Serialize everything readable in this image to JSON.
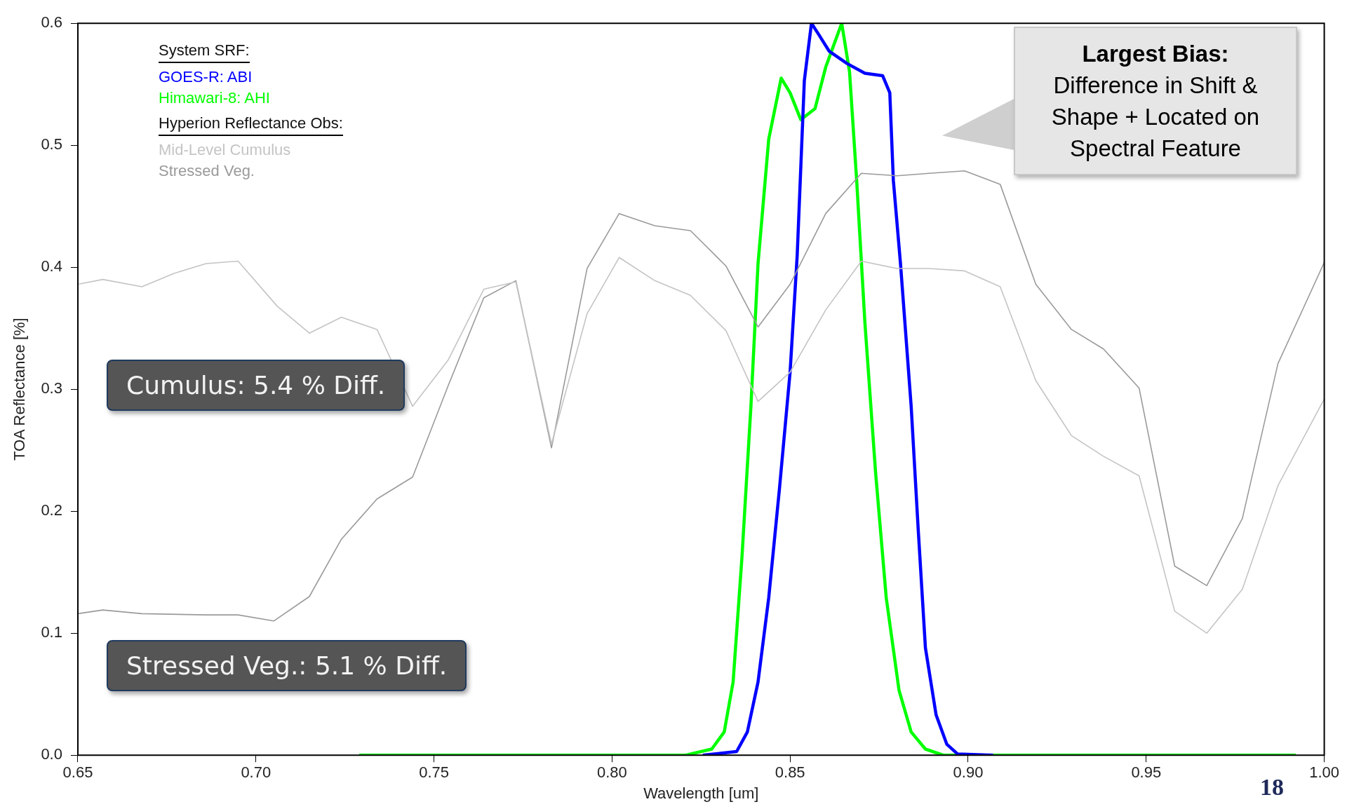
{
  "chart_data": {
    "type": "line",
    "xlabel": "Wavelength [um]",
    "ylabel": "TOA Reflectance [%]",
    "xlim": [
      0.65,
      1.0
    ],
    "xticks": [
      {
        "value": 0.65,
        "label": "0.65"
      },
      {
        "value": 0.7,
        "label": "0.70"
      },
      {
        "value": 0.75,
        "label": "0.75"
      },
      {
        "value": 0.8,
        "label": "0.80"
      },
      {
        "value": 0.85,
        "label": "0.85"
      },
      {
        "value": 0.9,
        "label": "0.90"
      },
      {
        "value": 0.95,
        "label": "0.95"
      },
      {
        "value": 1.0,
        "label": "1.00"
      }
    ],
    "ylim": [
      0,
      0.6
    ],
    "yticks": [
      {
        "value": 0,
        "label": "0.0"
      },
      {
        "value": 0.1,
        "label": "0.1"
      },
      {
        "value": 0.2,
        "label": "0.2"
      },
      {
        "value": 0.3,
        "label": "0.3"
      },
      {
        "value": 0.4,
        "label": "0.4"
      },
      {
        "value": 0.5,
        "label": "0.5"
      },
      {
        "value": 0.6,
        "label": "0.6"
      }
    ],
    "grid": false,
    "legend": "top left",
    "marker": "none",
    "line_style": "solid",
    "series": [
      {
        "name": "Mid-Level Cumulus",
        "color": "#c4c4c4",
        "x": [
          0.65,
          0.657,
          0.668,
          0.677,
          0.686,
          0.695,
          0.706,
          0.715,
          0.724,
          0.734,
          0.744,
          0.754,
          0.764,
          0.773,
          0.783,
          0.793,
          0.802,
          0.812,
          0.822,
          0.832,
          0.841,
          0.85,
          0.86,
          0.87,
          0.88,
          0.889,
          0.899,
          0.909,
          0.919,
          0.929,
          0.938,
          0.948,
          0.958,
          0.967,
          0.977,
          0.987,
          1.0
        ],
        "values": [
          0.386,
          0.39,
          0.384,
          0.395,
          0.403,
          0.405,
          0.368,
          0.346,
          0.359,
          0.349,
          0.286,
          0.324,
          0.382,
          0.388,
          0.255,
          0.362,
          0.408,
          0.389,
          0.377,
          0.348,
          0.29,
          0.314,
          0.365,
          0.405,
          0.399,
          0.399,
          0.397,
          0.384,
          0.307,
          0.262,
          0.245,
          0.229,
          0.118,
          0.1,
          0.136,
          0.221,
          0.292
        ]
      },
      {
        "name": "Stressed Veg.",
        "color": "#9a9a9a",
        "x": [
          0.65,
          0.657,
          0.668,
          0.686,
          0.695,
          0.705,
          0.715,
          0.724,
          0.734,
          0.744,
          0.754,
          0.764,
          0.773,
          0.783,
          0.793,
          0.802,
          0.812,
          0.822,
          0.832,
          0.841,
          0.85,
          0.86,
          0.87,
          0.88,
          0.889,
          0.899,
          0.909,
          0.919,
          0.929,
          0.938,
          0.948,
          0.958,
          0.967,
          0.977,
          0.987,
          1.0
        ],
        "values": [
          0.116,
          0.119,
          0.116,
          0.115,
          0.115,
          0.11,
          0.13,
          0.177,
          0.21,
          0.228,
          0.303,
          0.375,
          0.389,
          0.252,
          0.399,
          0.444,
          0.434,
          0.43,
          0.401,
          0.351,
          0.386,
          0.444,
          0.477,
          0.475,
          0.477,
          0.479,
          0.468,
          0.386,
          0.349,
          0.333,
          0.301,
          0.155,
          0.139,
          0.194,
          0.321,
          0.404
        ]
      },
      {
        "name": "GOES-R: ABI",
        "color": "#0000ff",
        "x": [
          0.8255,
          0.835,
          0.838,
          0.841,
          0.844,
          0.847,
          0.85,
          0.852,
          0.854,
          0.856,
          0.858,
          0.861,
          0.866,
          0.871,
          0.876,
          0.878,
          0.879,
          0.881,
          0.884,
          0.886,
          0.888,
          0.891,
          0.894,
          0.897,
          0.907
        ],
        "values": [
          0,
          0.003,
          0.019,
          0.06,
          0.129,
          0.218,
          0.314,
          0.41,
          0.553,
          0.6,
          0.591,
          0.577,
          0.567,
          0.559,
          0.557,
          0.543,
          0.471,
          0.403,
          0.286,
          0.184,
          0.088,
          0.033,
          0.009,
          0.001,
          0
        ]
      },
      {
        "name": "Himawari-8: AHI",
        "color": "#00ff00",
        "x": [
          0.729,
          0.8207,
          0.828,
          0.8315,
          0.834,
          0.8365,
          0.839,
          0.841,
          0.844,
          0.8475,
          0.85,
          0.853,
          0.857,
          0.86,
          0.8645,
          0.8667,
          0.8687,
          0.871,
          0.874,
          0.877,
          0.8806,
          0.884,
          0.888,
          0.893,
          0.992
        ],
        "values": [
          0,
          0,
          0.005,
          0.019,
          0.06,
          0.163,
          0.286,
          0.403,
          0.505,
          0.555,
          0.543,
          0.521,
          0.53,
          0.564,
          0.6,
          0.56,
          0.471,
          0.355,
          0.232,
          0.129,
          0.053,
          0.019,
          0.005,
          0,
          0
        ]
      }
    ],
    "annotations": [
      "System SRF:",
      "Hyperion Reflectance Obs:",
      "Cumulus: 5.4 % Diff.",
      "Stressed Veg.: 5.1 % Diff.",
      "Largest Bias:\nDifference in Shift &\nShape + Located on\nSpectral Feature",
      "18"
    ]
  }
}
